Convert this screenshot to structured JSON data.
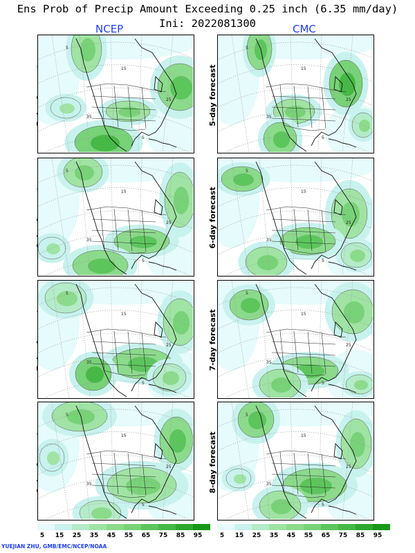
{
  "title_line1": "Ens Prob of Precip Amount Exceeding 0.25 inch (6.35 mm/day)",
  "title_line2": "Ini: 2022081300",
  "models": [
    "NCEP",
    "CMC"
  ],
  "rows": [
    "5-day forecast",
    "6-day forecast",
    "7-day forecast",
    "8-day forecast"
  ],
  "legend": {
    "labels": [
      "5",
      "15",
      "25",
      "35",
      "45",
      "55",
      "65",
      "75",
      "85",
      "95"
    ],
    "colors": [
      "#e6fbfb",
      "#c8f2ee",
      "#b4ebc8",
      "#a0e3a4",
      "#8cda8c",
      "#78d278",
      "#5cc55c",
      "#45b845",
      "#2ea82e",
      "#189818"
    ]
  },
  "credit": "YUEJIAN ZHU, GMB/EMC/NCEP/NOAA"
}
